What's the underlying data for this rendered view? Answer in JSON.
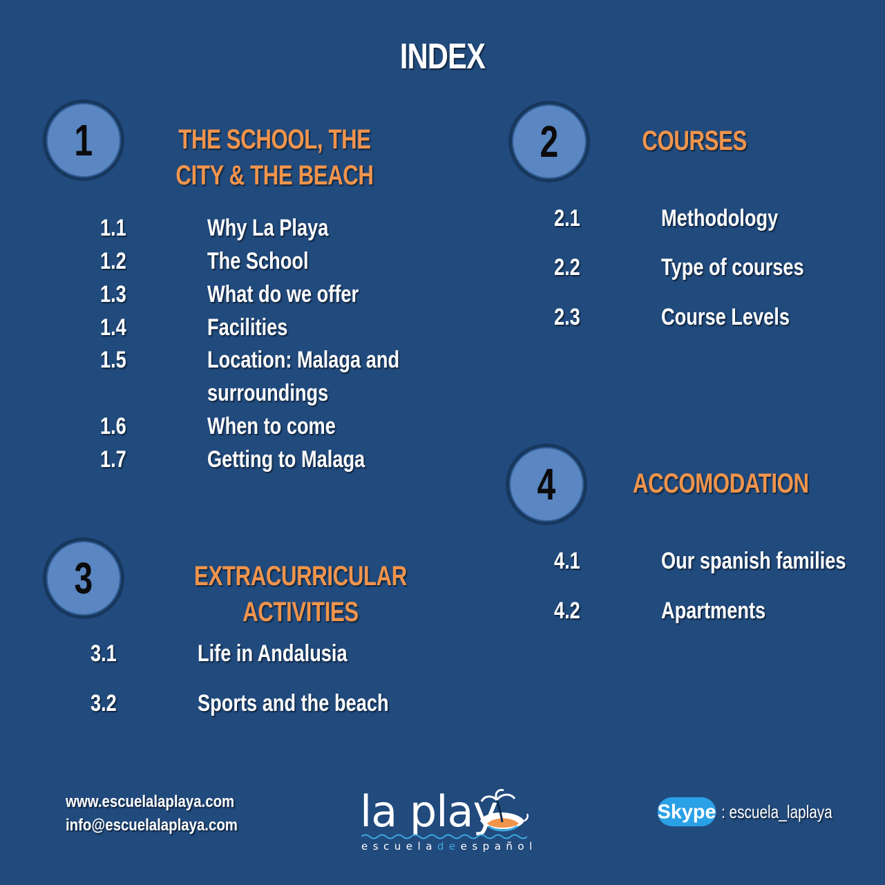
{
  "title": "INDEX",
  "sections": [
    {
      "number": "1",
      "title": "THE SCHOOL, THE CITY & THE BEACH",
      "items": [
        {
          "num": "1.1",
          "label": "Why La Playa"
        },
        {
          "num": "1.2",
          "label": "The School"
        },
        {
          "num": "1.3",
          "label": "What do we offer"
        },
        {
          "num": "1.4",
          "label": "Facilities"
        },
        {
          "num": "1.5",
          "label": "Location: Malaga and",
          "label2": "surroundings"
        },
        {
          "num": "1.6",
          "label": "When to come"
        },
        {
          "num": "1.7",
          "label": "Getting to Malaga"
        }
      ]
    },
    {
      "number": "2",
      "title": "COURSES",
      "items": [
        {
          "num": "2.1",
          "label": "Methodology"
        },
        {
          "num": "2.2",
          "label": "Type of courses"
        },
        {
          "num": "2.3",
          "label": "Course Levels"
        }
      ]
    },
    {
      "number": "3",
      "title": "EXTRACURRICULAR ACTIVITIES",
      "items": [
        {
          "num": "3.1",
          "label": "Life in Andalusia"
        },
        {
          "num": "3.2",
          "label": "Sports and the beach"
        }
      ]
    },
    {
      "number": "4",
      "title": "ACCOMODATION",
      "items": [
        {
          "num": "4.1",
          "label": "Our spanish families"
        },
        {
          "num": "4.2",
          "label": "Apartments"
        }
      ]
    }
  ],
  "footer": {
    "website": "www.escuelalaplaya.com",
    "email": "info@escuelalaplaya.com",
    "logo": {
      "word": "la play",
      "sub_pre": "escuela",
      "sub_de": "de",
      "sub_post": "español"
    },
    "skype_logo": "Skype",
    "skype_handle": ": escuela_laplaya"
  },
  "colors": {
    "background": "#214a7d",
    "section_title": "#f0944c",
    "circle": "#5a86c2",
    "text": "#ffffff"
  },
  "icons": [
    "number-circle",
    "palm-tree-icon",
    "skype-logo"
  ]
}
